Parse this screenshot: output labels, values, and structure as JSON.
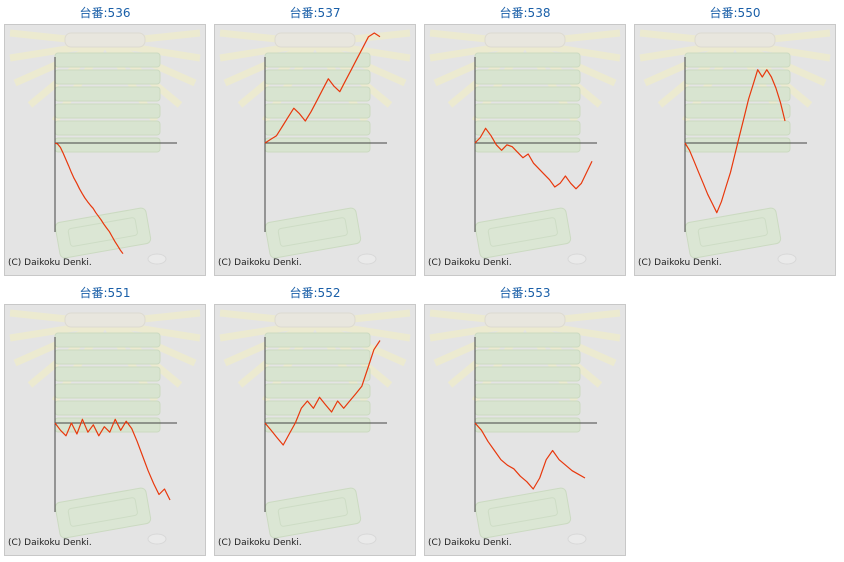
{
  "copyright": "(C) Daikoku Denki.",
  "colors": {
    "line": "#e8380d",
    "axis": "#444444",
    "title": "#1a5fa8",
    "background": "#e4e4e4"
  },
  "chart_data": [
    {
      "type": "line",
      "title": "台番:536",
      "values": [
        0,
        -3,
        -12,
        -28,
        -45,
        -62,
        -80,
        -96,
        -110,
        -125,
        -138,
        -150,
        -160,
        -170,
        -178,
        -190,
        -200,
        -210,
        -222,
        -232,
        -242,
        -255,
        -268,
        -280,
        -292,
        -302
      ]
    },
    {
      "type": "line",
      "title": "台番:537",
      "values": [
        0,
        10,
        20,
        45,
        70,
        95,
        80,
        60,
        85,
        115,
        145,
        175,
        155,
        140,
        170,
        200,
        230,
        260,
        290,
        300,
        290
      ]
    },
    {
      "type": "line",
      "title": "台番:538",
      "values": [
        0,
        15,
        40,
        20,
        -5,
        -20,
        -5,
        -10,
        -25,
        -40,
        -30,
        -55,
        -70,
        -85,
        -100,
        -120,
        -110,
        -90,
        -110,
        -125,
        -110,
        -80,
        -50
      ]
    },
    {
      "type": "line",
      "title": "台番:550",
      "values": [
        0,
        -20,
        -50,
        -80,
        -110,
        -140,
        -165,
        -190,
        -160,
        -120,
        -80,
        -30,
        20,
        70,
        120,
        160,
        200,
        180,
        200,
        180,
        150,
        110,
        60
      ]
    },
    {
      "type": "line",
      "title": "台番:551",
      "values": [
        0,
        -20,
        -35,
        0,
        -30,
        10,
        -25,
        -5,
        -35,
        -10,
        -25,
        10,
        -20,
        5,
        -15,
        -50,
        -90,
        -130,
        -165,
        -195,
        -180,
        -210
      ]
    },
    {
      "type": "line",
      "title": "台番:552",
      "values": [
        0,
        -20,
        -40,
        -60,
        -30,
        0,
        40,
        60,
        40,
        70,
        50,
        30,
        60,
        40,
        60,
        80,
        100,
        150,
        200,
        225
      ]
    },
    {
      "type": "line",
      "title": "台番:553",
      "values": [
        0,
        -20,
        -50,
        -75,
        -100,
        -115,
        -125,
        -145,
        -160,
        -180,
        -150,
        -100,
        -75,
        -100,
        -115,
        -130,
        -140,
        -150
      ]
    }
  ]
}
